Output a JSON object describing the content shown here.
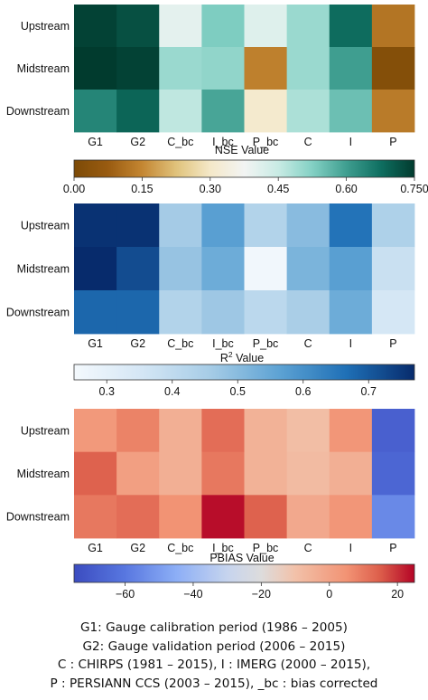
{
  "chart_data": [
    {
      "type": "heatmap",
      "title": "",
      "xlabel": "NSE Value",
      "colorbar_label": "NSE Value",
      "rows": [
        "Upstream",
        "Midstream",
        "Downstream"
      ],
      "columns": [
        "G1",
        "G2",
        "C_bc",
        "I_bc",
        "P_bc",
        "C",
        "I",
        "P"
      ],
      "values": [
        [
          0.74,
          0.72,
          0.4,
          0.53,
          0.41,
          0.5,
          0.68,
          0.12
        ],
        [
          0.75,
          0.74,
          0.5,
          0.51,
          0.14,
          0.5,
          0.6,
          0.02
        ],
        [
          0.64,
          0.69,
          0.46,
          0.59,
          0.31,
          0.48,
          0.55,
          0.13
        ]
      ],
      "colormap": "BrBG",
      "vmin": 0.0,
      "vmax": 0.75,
      "colorbar_ticks": [
        0.0,
        0.15,
        0.3,
        0.45,
        0.6,
        0.75
      ],
      "colorbar_tick_labels": [
        "0.00",
        "0.15",
        "0.30",
        "0.45",
        "0.60",
        "0.750"
      ]
    },
    {
      "type": "heatmap",
      "title": "",
      "xlabel": "R² Value",
      "xlabel_base": "R",
      "xlabel_superscript": "2",
      "xlabel_suffix": " Value",
      "rows": [
        "Upstream",
        "Midstream",
        "Downstream"
      ],
      "columns": [
        "G1",
        "G2",
        "C_bc",
        "I_bc",
        "P_bc",
        "C",
        "I",
        "P"
      ],
      "values": [
        [
          0.76,
          0.76,
          0.46,
          0.57,
          0.43,
          0.5,
          0.66,
          0.44
        ],
        [
          0.8,
          0.72,
          0.48,
          0.54,
          0.26,
          0.52,
          0.57,
          0.38
        ],
        [
          0.68,
          0.68,
          0.43,
          0.47,
          0.41,
          0.45,
          0.54,
          0.35
        ]
      ],
      "colormap": "Blues",
      "vmin": 0.25,
      "vmax": 0.77,
      "colorbar_ticks": [
        0.3,
        0.4,
        0.5,
        0.6,
        0.7
      ],
      "colorbar_tick_labels": [
        "0.3",
        "0.4",
        "0.5",
        "0.6",
        "0.7"
      ]
    },
    {
      "type": "heatmap",
      "title": "",
      "xlabel": "PBIAS Value",
      "rows": [
        "Upstream",
        "Midstream",
        "Downstream"
      ],
      "columns": [
        "G1",
        "G2",
        "C_bc",
        "I_bc",
        "P_bc",
        "C",
        "I",
        "P"
      ],
      "values": [
        [
          3,
          8,
          -4,
          12,
          -5,
          -9,
          4,
          -68
        ],
        [
          14,
          1,
          -4,
          10,
          -5,
          -8,
          -4,
          -66
        ],
        [
          10,
          12,
          5,
          24,
          14,
          -2,
          4,
          -55
        ]
      ],
      "colormap": "coolwarm",
      "vmin": -75,
      "vmax": 25,
      "colorbar_ticks": [
        -60,
        -40,
        -20,
        0,
        20
      ],
      "colorbar_tick_labels": [
        "−60",
        "−40",
        "−20",
        "0",
        "20"
      ]
    }
  ],
  "notes": [
    "G1: Gauge calibration period (1986 – 2005)",
    "G2: Gauge validation period (2006 – 2015)",
    "C : CHIRPS (1981 – 2015), I : IMERG (2000 – 2015),",
    "P : PERSIANN CCS (2003 – 2015), _bc : bias corrected"
  ]
}
